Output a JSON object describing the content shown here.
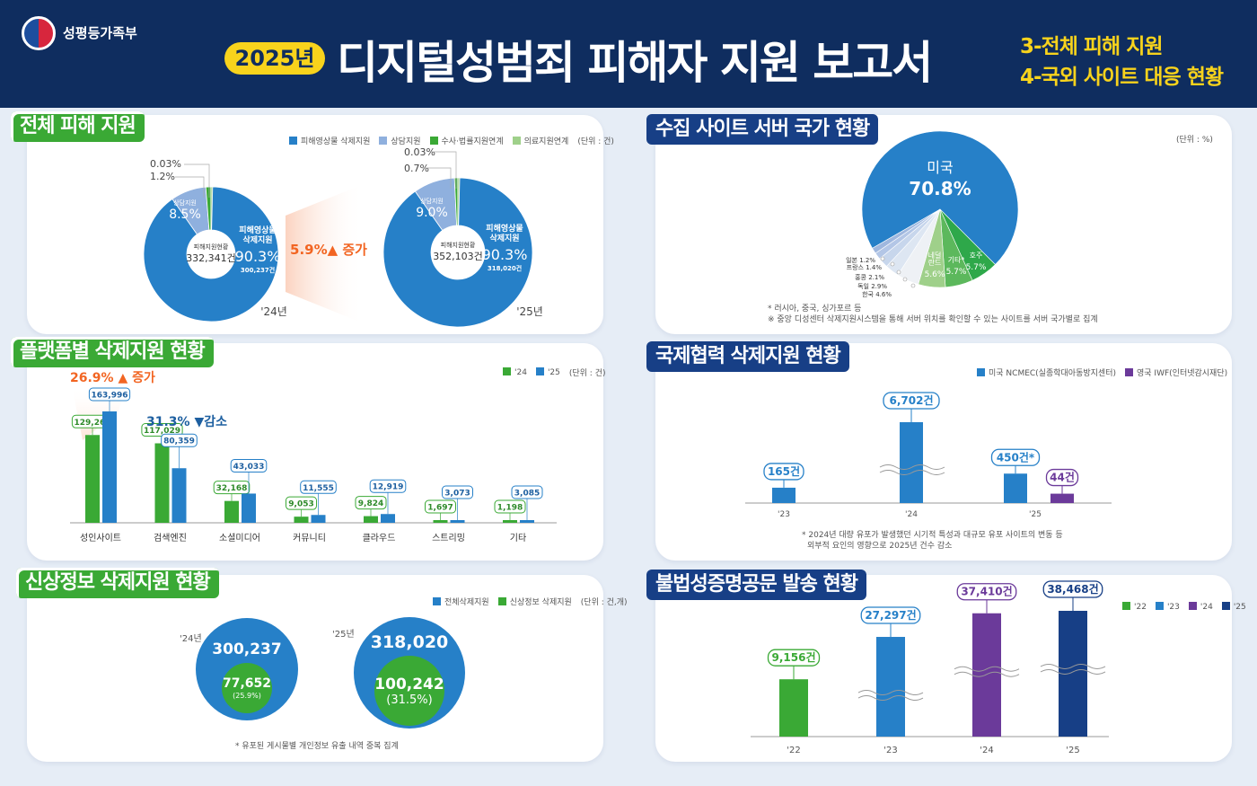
{
  "header": {
    "logo_text": "성평등가족부",
    "year_badge": "2025년",
    "title": "디지털성범죄 피해자 지원 보고서",
    "sub1": "3-전체 피해 지원",
    "sub2": "4-국외 사이트 대응 현황"
  },
  "colors": {
    "navy": "#0f2d5f",
    "blue": "#2680c8",
    "light_blue": "#8fb0de",
    "green": "#3aa935",
    "light_green": "#9fd08a",
    "purple": "#6b3a9a",
    "dark_navy": "#173f86",
    "orange": "#f26522",
    "yellow": "#f8d31c"
  },
  "s1": {
    "title": "전체 피해 지원",
    "legend": [
      "피해영상물 삭제지원",
      "상담지원",
      "수사·법률지원연계",
      "의료지원연계"
    ],
    "unit": "(단위 : 건)",
    "change": "5.9%▲ 증가",
    "y24": {
      "year": "'24년",
      "center_label": "피해지원현황",
      "total": "332,341건",
      "main_label": "피해영상물 삭제지원",
      "main_pct": "90.3%",
      "main_count": "300,237건",
      "counsel_label": "상담지원",
      "counsel_pct": "8.5%",
      "legal_pct": "1.2%",
      "medical_pct": "0.03%"
    },
    "y25": {
      "year": "'25년",
      "center_label": "피해지원현황",
      "total": "352,103건",
      "main_label": "피해영상물 삭제지원",
      "main_pct": "90.3%",
      "main_count": "318,020건",
      "counsel_label": "상담지원",
      "counsel_pct": "9.0%",
      "legal_pct": "0.7%",
      "medical_pct": "0.03%"
    }
  },
  "s2": {
    "title": "플랫폼별 삭제지원 현황",
    "legend": [
      "'24",
      "'25"
    ],
    "unit": "(단위 : 건)",
    "callout1": "26.9% ▲ 증가",
    "callout2": "31.3% ▼감소"
  },
  "s3": {
    "title": "신상정보 삭제지원 현황",
    "legend": [
      "전체삭제지원",
      "신상정보 삭제지원"
    ],
    "unit": "(단위 : 건,개)",
    "y24": {
      "year": "'24년",
      "total": "300,237",
      "personal": "77,652",
      "pct": "(25.9%)"
    },
    "y25": {
      "year": "'25년",
      "total": "318,020",
      "personal": "100,242",
      "pct": "(31.5%)"
    },
    "note": "* 유포된 게시물별 개인정보 유출 내역 중복 집계"
  },
  "s4": {
    "title": "수집 사이트 서버 국가 현황",
    "unit": "(단위 : %)",
    "note1": "* 러시아, 중국, 싱가포르 등",
    "note2": "※ 중앙 디성센터 삭제지원시스템을 통해 서버 위치를 확인할 수 있는 사이트를 서버 국가별로 집계"
  },
  "s5": {
    "title": "국제협력 삭제지원 현황",
    "legend": [
      "미국 NCMEC(실종학대아동방지센터)",
      "영국 IWF(인터넷감시재단)"
    ],
    "note1": "* 2024년 대량 유포가 발생했던 시기적 특성과 대규모 유포 사이트의 변동 등",
    "note2": "외부적 요인의 영향으로 2025년 건수 감소"
  },
  "s6": {
    "title": "불법성증명공문 발송 현황",
    "legend": [
      "'22",
      "'23",
      "'24",
      "'25"
    ]
  },
  "chart_data": [
    {
      "type": "pie",
      "title": "전체 피해 지원 '24년",
      "categories": [
        "피해영상물 삭제지원",
        "상담지원",
        "수사·법률지원연계",
        "의료지원연계"
      ],
      "values": [
        90.3,
        8.5,
        1.2,
        0.03
      ]
    },
    {
      "type": "pie",
      "title": "전체 피해 지원 '25년",
      "categories": [
        "피해영상물 삭제지원",
        "상담지원",
        "수사·법률지원연계",
        "의료지원연계"
      ],
      "values": [
        90.3,
        9.0,
        0.7,
        0.03
      ]
    },
    {
      "type": "bar",
      "categories": [
        "성인사이트",
        "검색엔진",
        "소셜미디어",
        "커뮤니티",
        "클라우드",
        "스트리밍",
        "기타"
      ],
      "series": [
        {
          "name": "'24",
          "values": [
            129268,
            117029,
            32168,
            9053,
            9824,
            1697,
            1198
          ]
        },
        {
          "name": "'25",
          "values": [
            163996,
            80359,
            43033,
            11555,
            12919,
            3073,
            3085
          ]
        }
      ]
    },
    {
      "type": "pie",
      "categories": [
        "미국",
        "호주",
        "기타",
        "네덜란드",
        "한국",
        "독일",
        "홍콩",
        "프랑스",
        "일본"
      ],
      "values": [
        70.8,
        5.7,
        5.7,
        5.6,
        4.6,
        2.9,
        2.1,
        1.4,
        1.2
      ],
      "labels": [
        "미국",
        "호주",
        "기타*",
        "네덜\n란드",
        "한국",
        "독일",
        "홍콩",
        "프랑스",
        "일본"
      ]
    },
    {
      "type": "bar",
      "categories": [
        "'23",
        "'24",
        "'25"
      ],
      "series": [
        {
          "name": "미국 NCMEC(실종학대아동방지센터)",
          "values": [
            165,
            6702,
            450
          ]
        },
        {
          "name": "영국 IWF(인터넷감시재단)",
          "values": [
            null,
            null,
            44
          ]
        }
      ],
      "data_labels": [
        "165건",
        "6,702건",
        "450건*",
        "44건"
      ]
    },
    {
      "type": "bar",
      "categories": [
        "'22",
        "'23",
        "'24",
        "'25"
      ],
      "values": [
        9156,
        27297,
        37410,
        38468
      ],
      "data_labels": [
        "9,156건",
        "27,297건",
        "37,410건",
        "38,468건"
      ]
    }
  ]
}
